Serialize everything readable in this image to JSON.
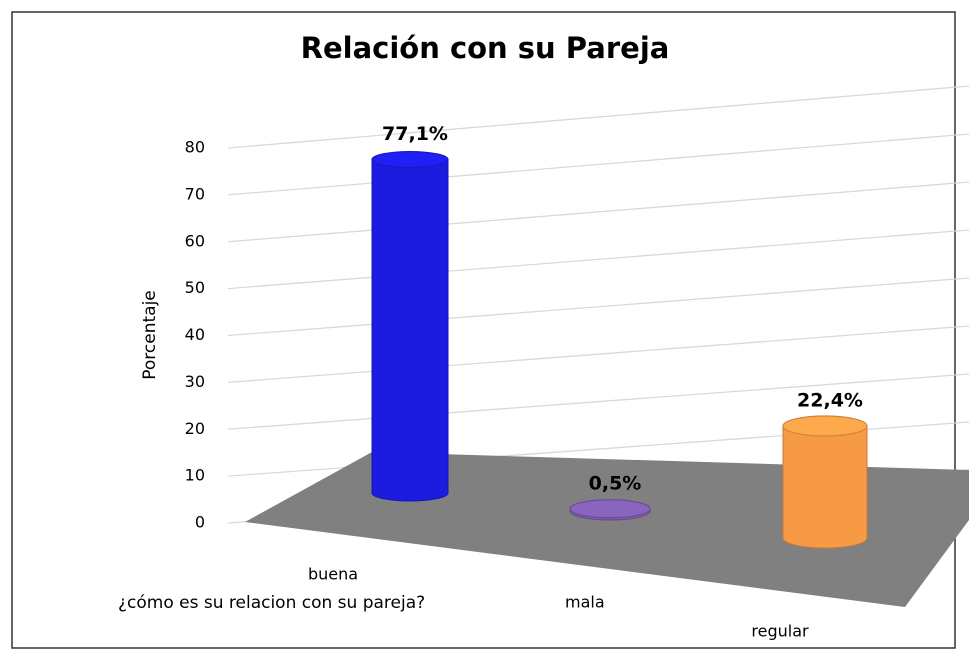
{
  "chart_data": {
    "type": "bar3d",
    "title": "Relación con su Pareja",
    "x_label": "¿cómo es su relacion con su pareja?",
    "y_label": "Porcentaje",
    "categories": [
      "buena",
      "mala",
      "regular"
    ],
    "values": [
      77.1,
      0.5,
      22.4
    ],
    "value_labels": [
      "77,1%",
      "0,5%",
      "22,4%"
    ],
    "colors": [
      "#1c1ce0",
      "#7d5cae",
      "#f79a46"
    ],
    "ylim": [
      0,
      80
    ],
    "yticks": [
      0,
      10,
      20,
      30,
      40,
      50,
      60,
      70,
      80
    ],
    "grid": true
  }
}
